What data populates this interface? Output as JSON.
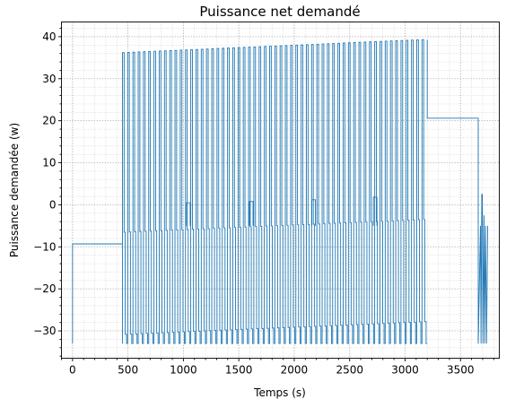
{
  "chart_data": {
    "type": "line",
    "title": "Puissance net demandé",
    "xlabel": "Temps (s)",
    "ylabel": "Puissance demandée (w)",
    "xlim": [
      -100,
      3850
    ],
    "ylim": [
      -36.5,
      43.5
    ],
    "x_ticks": [
      0,
      500,
      1000,
      1500,
      2000,
      2500,
      3000,
      3500
    ],
    "y_ticks": [
      -30,
      -20,
      -10,
      0,
      10,
      20,
      30,
      40
    ],
    "grid": true,
    "grid_minor": true,
    "line_color": "#1f77b4",
    "series": [
      {
        "segments": [
          {
            "phase": "idle",
            "x": [
              0,
              0,
              450
            ],
            "y": [
              -33,
              -9.3,
              -9.3
            ]
          },
          {
            "phase": "cycling",
            "x_start": 450,
            "x_end": 3200,
            "cycles": 58,
            "peak_start": 36.2,
            "peak_end": 39.3,
            "mid_start": -6.5,
            "mid_end": -3.5,
            "trough_start": -30.8,
            "trough_end": -27.8,
            "floor": -33
          },
          {
            "phase": "constant",
            "x": [
              3200,
              3200,
              3660,
              3660
            ],
            "y": [
              39.3,
              20.6,
              20.6,
              -33
            ]
          },
          {
            "phase": "end",
            "x": [
              3660,
              3680,
              3685,
              3692,
              3697,
              3702,
              3712,
              3718,
              3726,
              3735,
              3745
            ],
            "y": [
              -33,
              -5,
              -33,
              2.5,
              2.5,
              -33,
              -2.5,
              -33,
              -5,
              -33,
              -5
            ]
          }
        ],
        "spikes": [
          {
            "x": 1045,
            "y": 0.5
          },
          {
            "x": 1612,
            "y": 0.8
          },
          {
            "x": 2175,
            "y": 1.2
          },
          {
            "x": 2730,
            "y": 1.8
          }
        ]
      }
    ]
  }
}
